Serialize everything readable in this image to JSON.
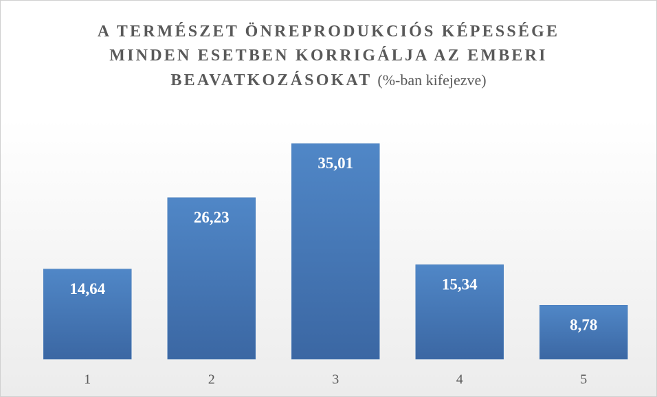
{
  "chart_data": {
    "type": "bar",
    "title": "A TERMÉSZET ÖNREPRODUKCIÓS KÉPESSÉGE MINDEN ESETBEN KORRIGÁLJA AZ EMBERI BEAVATKOZÁSOKAT",
    "subtitle": "(%-ban kifejezve)",
    "categories": [
      "1",
      "2",
      "3",
      "4",
      "5"
    ],
    "values": [
      14.64,
      26.23,
      35.01,
      15.34,
      8.78
    ],
    "value_labels": [
      "14,64",
      "26,23",
      "35,01",
      "15,34",
      "8,78"
    ],
    "color": "#4a7ebb"
  }
}
